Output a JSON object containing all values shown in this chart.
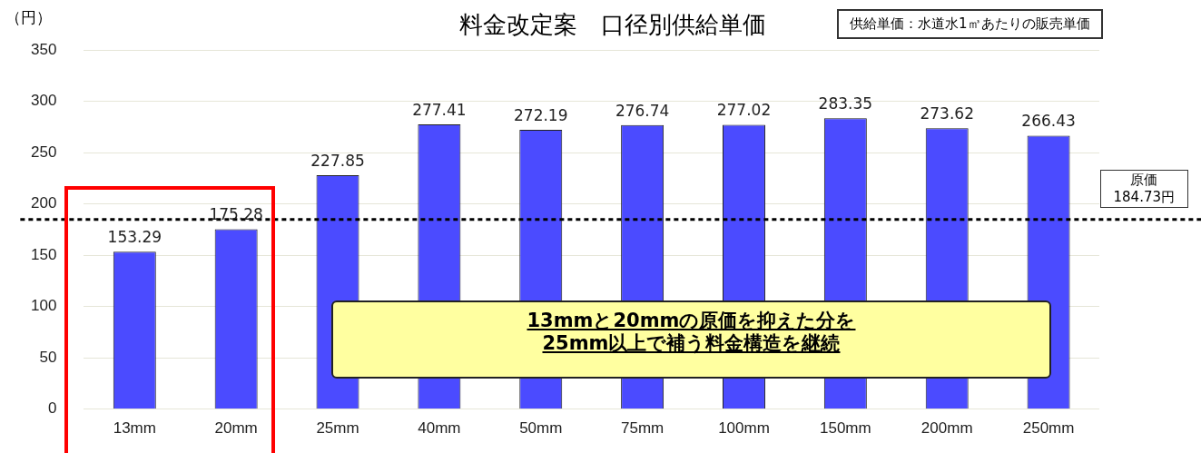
{
  "chart_data": {
    "type": "bar",
    "title": "料金改定案　口径別供給単価",
    "ylabel": "（円）",
    "categories": [
      "13mm",
      "20mm",
      "25mm",
      "40mm",
      "50mm",
      "75mm",
      "100mm",
      "150mm",
      "200mm",
      "250mm"
    ],
    "values": [
      153.29,
      175.28,
      227.85,
      277.41,
      272.19,
      276.74,
      277.02,
      283.35,
      273.62,
      266.43
    ],
    "color": "#4b4bff",
    "ylim": [
      0,
      350
    ],
    "yticks": [
      0,
      50,
      100,
      150,
      200,
      250,
      300,
      350
    ],
    "grid": "y",
    "data_labels": true,
    "ref_lines": [
      {
        "axis": "y",
        "value": 184.73,
        "label": "原価\n184.73円",
        "color": "#000000",
        "line_style": "dashed"
      }
    ],
    "annotations": [
      "供給単価：水道水1㎥あたりの販売単価",
      "13mmと20mmの原価を抑えた分を\n25mm以上で補う料金構造を継続"
    ]
  }
}
